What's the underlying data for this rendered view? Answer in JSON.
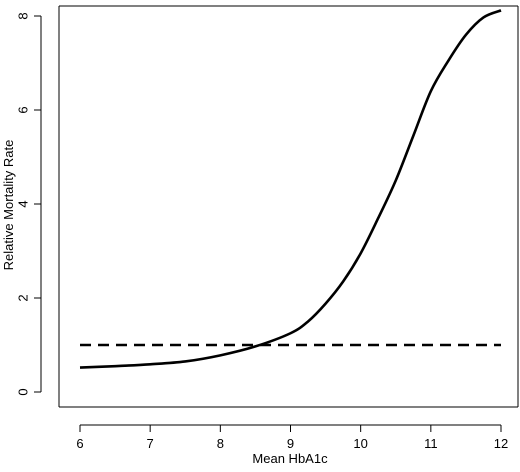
{
  "chart_data": {
    "type": "line",
    "title": "",
    "xlabel": "Mean HbA1c",
    "ylabel": "Relative Mortality Rate",
    "xlim": [
      6,
      12
    ],
    "ylim": [
      0,
      8
    ],
    "xticks": [
      "6",
      "7",
      "8",
      "9",
      "10",
      "11",
      "12"
    ],
    "yticks": [
      "0",
      "2",
      "4",
      "6",
      "8"
    ],
    "grid": false,
    "legend": "none",
    "series": [
      {
        "style": "solid",
        "color": "#000000",
        "x": [
          6.0,
          6.5,
          7.0,
          7.5,
          8.0,
          8.5,
          9.0,
          9.25,
          9.5,
          9.75,
          10.0,
          10.25,
          10.5,
          10.75,
          11.0,
          11.25,
          11.5,
          11.75,
          12.0
        ],
        "y": [
          0.52,
          0.55,
          0.59,
          0.65,
          0.78,
          0.97,
          1.25,
          1.5,
          1.88,
          2.35,
          2.95,
          3.7,
          4.5,
          5.45,
          6.4,
          7.05,
          7.6,
          7.97,
          8.12
        ]
      },
      {
        "style": "dashed",
        "color": "#000000",
        "x": [
          6.0,
          12.0
        ],
        "y": [
          1.0,
          1.0
        ]
      }
    ]
  }
}
